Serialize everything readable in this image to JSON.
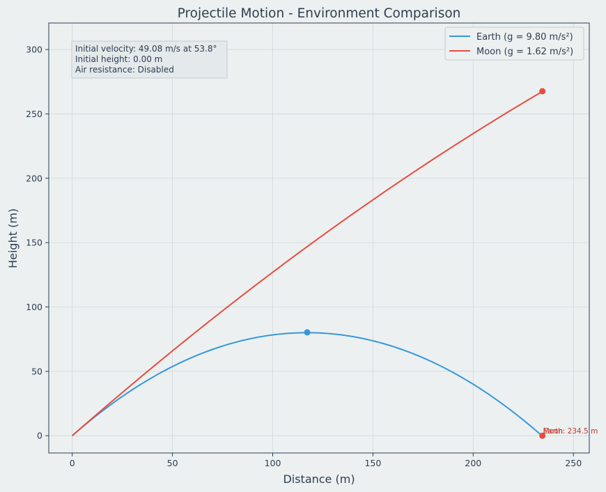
{
  "chart_data": {
    "type": "line",
    "title": "Projectile Motion - Environment Comparison",
    "xlabel": "Distance (m)",
    "ylabel": "Height (m)",
    "xlim": [
      -11.7,
      257.9
    ],
    "ylim": [
      -13.4,
      320.6
    ],
    "xticks": [
      0,
      50,
      100,
      150,
      200,
      250
    ],
    "yticks": [
      0,
      50,
      100,
      150,
      200,
      250,
      300
    ],
    "grid": true,
    "legend_position": "top-right",
    "info_box": {
      "lines": [
        "Initial velocity: 49.08 m/s at 53.8°",
        "Initial height: 0.00 m",
        "Air resistance: Disabled"
      ],
      "position": "top-left"
    },
    "series": [
      {
        "name": "Earth (g = 9.80 m/s²)",
        "color": "#3498db",
        "g": 9.8,
        "initial_velocity": 49.08,
        "angle_deg": 53.8,
        "range": 234.5,
        "max_height": 80.3,
        "markers": [
          {
            "x": 117.2,
            "y": 80.3,
            "color": "#3498db"
          },
          {
            "x": 234.5,
            "y": 0,
            "color": "#e74c3c"
          }
        ]
      },
      {
        "name": "Moon (g = 1.62 m/s²)",
        "color": "#e74c3c",
        "g": 1.62,
        "initial_velocity": 49.08,
        "angle_deg": 53.8,
        "end_x": 234.5,
        "markers": [
          {
            "x": 234.5,
            "y": 267.6,
            "color": "#e74c3c"
          }
        ]
      }
    ],
    "annotations": [
      {
        "text": "Earth: 234.5 m",
        "x": 234.5,
        "y": 0,
        "color": "#c0392b"
      },
      {
        "text": "Moon",
        "x": 234.5,
        "y": 0,
        "color": "#c0392b"
      }
    ]
  }
}
